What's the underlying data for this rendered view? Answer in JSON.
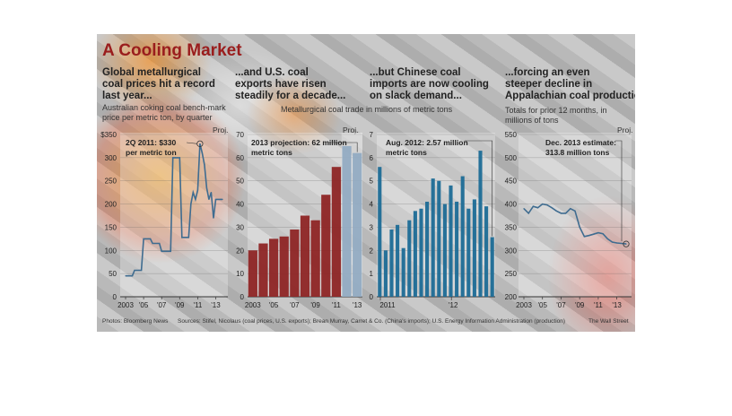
{
  "title": "A Cooling Market",
  "panels": [
    {
      "heading": "Global metallurgical coal prices hit a record last year...",
      "subheading": "Australian coking coal bench-mark price per metric ton, by quarter",
      "proj": "Proj."
    },
    {
      "heading": "...and U.S. coal exports have risen steadily for a decade...",
      "proj": "Proj."
    },
    {
      "heading": "...but Chinese coal imports are now cooling on slack demand..."
    },
    {
      "heading": "...forcing an even steeper decline in Appalachian coal production.",
      "subheading": "Totals for prior 12 months, in millions of tons",
      "proj": "Proj."
    }
  ],
  "shared_subtitle": "Metallurgical coal trade in millions of metric tons",
  "footer": {
    "photos": "Photos: Bloomberg News",
    "sources": "Sources: Stifel, Nicolaus (coal prices, U.S. exports); Brean Murray, Carret & Co. (China's imports); U.S. Energy Information Administration (production)",
    "credit": "The Wall Street"
  },
  "colors": {
    "title": "#9a1d1d",
    "export_bars": "#8e2525",
    "china_bars": "#1c6b96",
    "lines": "#3f6c90",
    "projection": "#6f8fae"
  },
  "chart_data": [
    {
      "type": "line",
      "annotation": "2Q 2011: $330 per metric ton",
      "ylim": [
        0,
        350
      ],
      "yticks": [
        "$350",
        "300",
        "250",
        "200",
        "150",
        "100",
        "50",
        "0"
      ],
      "xticks": [
        "2003",
        "'05",
        "'07",
        "'09",
        "'11",
        "'13"
      ],
      "x": [
        2003.0,
        2003.25,
        2003.5,
        2003.75,
        2004.0,
        2004.25,
        2004.5,
        2004.75,
        2005.0,
        2005.25,
        2005.5,
        2005.75,
        2006.0,
        2006.25,
        2006.5,
        2006.75,
        2007.0,
        2007.25,
        2007.5,
        2007.75,
        2008.0,
        2008.25,
        2008.5,
        2008.75,
        2009.0,
        2009.25,
        2009.5,
        2009.75,
        2010.0,
        2010.25,
        2010.5,
        2010.75,
        2011.0,
        2011.25,
        2011.5,
        2011.75,
        2012.0,
        2012.25,
        2012.5,
        2012.75,
        2013.0,
        2013.25,
        2013.5,
        2013.75
      ],
      "y": [
        45,
        45,
        45,
        45,
        57,
        57,
        57,
        57,
        125,
        125,
        125,
        125,
        115,
        115,
        115,
        115,
        98,
        98,
        98,
        98,
        98,
        300,
        300,
        300,
        300,
        128,
        128,
        128,
        128,
        200,
        225,
        210,
        230,
        330,
        310,
        285,
        235,
        210,
        225,
        170,
        210,
        210,
        210,
        210
      ]
    },
    {
      "type": "bar",
      "annotation": "2013 projection: 62 million metric tons",
      "ylim": [
        0,
        70
      ],
      "yticks": [
        "70",
        "60",
        "50",
        "40",
        "30",
        "20",
        "10",
        "0"
      ],
      "xticks": [
        "2003",
        "'05",
        "'07",
        "'09",
        "'11",
        "'13"
      ],
      "categories": [
        "2003",
        "2004",
        "2005",
        "2006",
        "2007",
        "2008",
        "2009",
        "2010",
        "2011",
        "2012",
        "2013"
      ],
      "values": [
        20,
        23,
        25,
        26,
        29,
        35,
        33,
        44,
        56,
        65,
        62
      ],
      "projected_from": "2012"
    },
    {
      "type": "bar",
      "annotation": "Aug. 2012: 2.57 million metric tons",
      "ylim": [
        0,
        7
      ],
      "yticks": [
        "7",
        "6",
        "5",
        "4",
        "3",
        "2",
        "1",
        "0"
      ],
      "xticks": [
        "2011",
        "'12"
      ],
      "categories": [
        "Jan 2011",
        "Feb 2011",
        "Mar 2011",
        "Apr 2011",
        "May 2011",
        "Jun 2011",
        "Jul 2011",
        "Aug 2011",
        "Sep 2011",
        "Oct 2011",
        "Nov 2011",
        "Dec 2011",
        "Jan 2012",
        "Feb 2012",
        "Mar 2012",
        "Apr 2012",
        "May 2012",
        "Jun 2012",
        "Jul 2012",
        "Aug 2012"
      ],
      "values": [
        5.6,
        2.0,
        2.9,
        3.1,
        2.1,
        3.3,
        3.7,
        3.8,
        4.1,
        5.1,
        5.0,
        4.0,
        4.8,
        4.1,
        5.2,
        3.8,
        4.2,
        6.3,
        3.9,
        2.57
      ]
    },
    {
      "type": "line",
      "annotation": "Dec. 2013 estimate: 313.8 million tons",
      "ylim": [
        200,
        550
      ],
      "yticks": [
        "550",
        "500",
        "450",
        "400",
        "350",
        "300",
        "250",
        "200"
      ],
      "xticks": [
        "2003",
        "'05",
        "'07",
        "'09",
        "'11",
        "'13"
      ],
      "x": [
        2003.0,
        2003.5,
        2004.0,
        2004.5,
        2005.0,
        2005.5,
        2006.0,
        2006.5,
        2007.0,
        2007.5,
        2008.0,
        2008.5,
        2009.0,
        2009.5,
        2010.0,
        2010.5,
        2011.0,
        2011.5,
        2012.0,
        2012.5,
        2013.0,
        2013.5,
        2014.0
      ],
      "y": [
        390,
        380,
        395,
        392,
        400,
        398,
        392,
        385,
        380,
        380,
        390,
        385,
        350,
        330,
        332,
        335,
        338,
        336,
        325,
        318,
        316,
        315,
        313.8
      ]
    }
  ]
}
